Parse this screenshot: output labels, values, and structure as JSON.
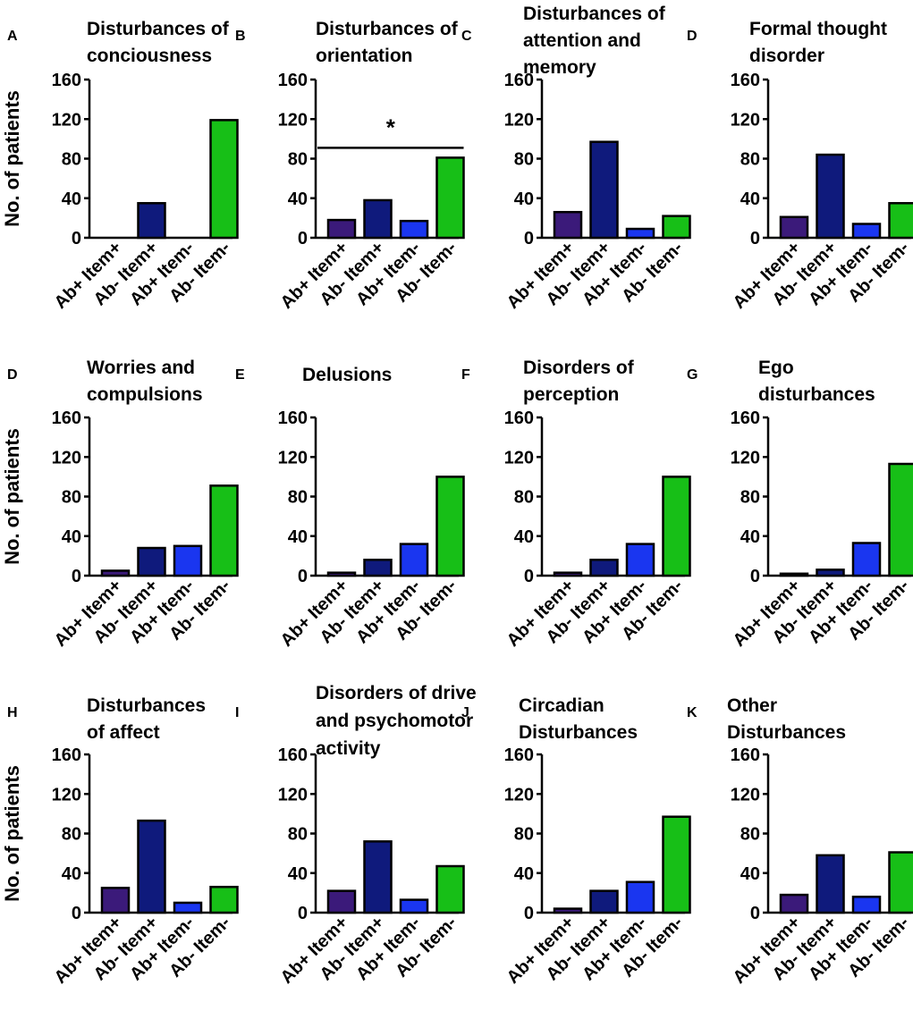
{
  "ylabel": "No. of patients",
  "categories": [
    "Ab+ Item+",
    "Ab- Item+",
    "Ab+ Item-",
    "Ab- Item-"
  ],
  "colors": [
    "#3b1a7a",
    "#0f1a7c",
    "#1a36f0",
    "#17bf17"
  ],
  "y_ticks": [
    "0",
    "40",
    "80",
    "120",
    "160"
  ],
  "chart_data": [
    {
      "type": "bar",
      "panel": "A",
      "title": [
        "Disturbances of",
        "conciousness"
      ],
      "categories": [
        "Ab+ Item+",
        "Ab- Item+",
        "Ab+ Item-",
        "Ab- Item-"
      ],
      "values": [
        0,
        35,
        0,
        119
      ],
      "ylim": [
        0,
        160
      ],
      "ylabel": "No. of patients"
    },
    {
      "type": "bar",
      "panel": "B",
      "title": [
        "Disturbances of",
        "orientation"
      ],
      "categories": [
        "Ab+ Item+",
        "Ab- Item+",
        "Ab+ Item-",
        "Ab- Item-"
      ],
      "values": [
        18,
        38,
        17,
        81
      ],
      "ylim": [
        0,
        160
      ],
      "significance": {
        "label": "*",
        "from": 0,
        "to": 3,
        "level": 91
      }
    },
    {
      "type": "bar",
      "panel": "C",
      "title": [
        "Disturbances of",
        "attention and",
        "memory"
      ],
      "categories": [
        "Ab+ Item+",
        "Ab- Item+",
        "Ab+ Item-",
        "Ab- Item-"
      ],
      "values": [
        26,
        97,
        9,
        22
      ],
      "ylim": [
        0,
        160
      ]
    },
    {
      "type": "bar",
      "panel": "D",
      "title": [
        "Formal thought",
        "disorder"
      ],
      "categories": [
        "Ab+ Item+",
        "Ab- Item+",
        "Ab+ Item-",
        "Ab- Item-"
      ],
      "values": [
        21,
        84,
        14,
        35
      ],
      "ylim": [
        0,
        160
      ]
    },
    {
      "type": "bar",
      "panel": "D",
      "title": [
        "Worries and",
        "compulsions"
      ],
      "categories": [
        "Ab+ Item+",
        "Ab- Item+",
        "Ab+ Item-",
        "Ab- Item-"
      ],
      "values": [
        5,
        28,
        30,
        91
      ],
      "ylim": [
        0,
        160
      ],
      "ylabel": "No. of patients"
    },
    {
      "type": "bar",
      "panel": "E",
      "title": [
        "Delusions"
      ],
      "categories": [
        "Ab+ Item+",
        "Ab- Item+",
        "Ab+ Item-",
        "Ab- Item-"
      ],
      "values": [
        3,
        16,
        32,
        100
      ],
      "ylim": [
        0,
        160
      ]
    },
    {
      "type": "bar",
      "panel": "F",
      "title": [
        "Disorders of",
        "perception"
      ],
      "categories": [
        "Ab+ Item+",
        "Ab- Item+",
        "Ab+ Item-",
        "Ab- Item-"
      ],
      "values": [
        3,
        16,
        32,
        100
      ],
      "ylim": [
        0,
        160
      ]
    },
    {
      "type": "bar",
      "panel": "G",
      "title": [
        "Ego",
        "disturbances"
      ],
      "categories": [
        "Ab+ Item+",
        "Ab- Item+",
        "Ab+ Item-",
        "Ab- Item-"
      ],
      "values": [
        2,
        6,
        33,
        113
      ],
      "ylim": [
        0,
        160
      ]
    },
    {
      "type": "bar",
      "panel": "H",
      "title": [
        "Disturbances",
        "of affect"
      ],
      "categories": [
        "Ab+ Item+",
        "Ab- Item+",
        "Ab+ Item-",
        "Ab- Item-"
      ],
      "values": [
        25,
        93,
        10,
        26
      ],
      "ylim": [
        0,
        160
      ],
      "ylabel": "No. of patients"
    },
    {
      "type": "bar",
      "panel": "I",
      "title": [
        "Disorders of drive",
        "and psychomotor",
        "activity"
      ],
      "categories": [
        "Ab+ Item+",
        "Ab- Item+",
        "Ab+ Item-",
        "Ab- Item-"
      ],
      "values": [
        22,
        72,
        13,
        47
      ],
      "ylim": [
        0,
        160
      ]
    },
    {
      "type": "bar",
      "panel": "J",
      "title": [
        "Circadian",
        "Disturbances"
      ],
      "categories": [
        "Ab+ Item+",
        "Ab- Item+",
        "Ab+ Item-",
        "Ab- Item-"
      ],
      "values": [
        4,
        22,
        31,
        97
      ],
      "ylim": [
        0,
        160
      ]
    },
    {
      "type": "bar",
      "panel": "K",
      "title": [
        "Other",
        "Disturbances"
      ],
      "categories": [
        "Ab+ Item+",
        "Ab- Item+",
        "Ab+ Item-",
        "Ab- Item-"
      ],
      "values": [
        18,
        58,
        16,
        61
      ],
      "ylim": [
        0,
        160
      ]
    }
  ]
}
